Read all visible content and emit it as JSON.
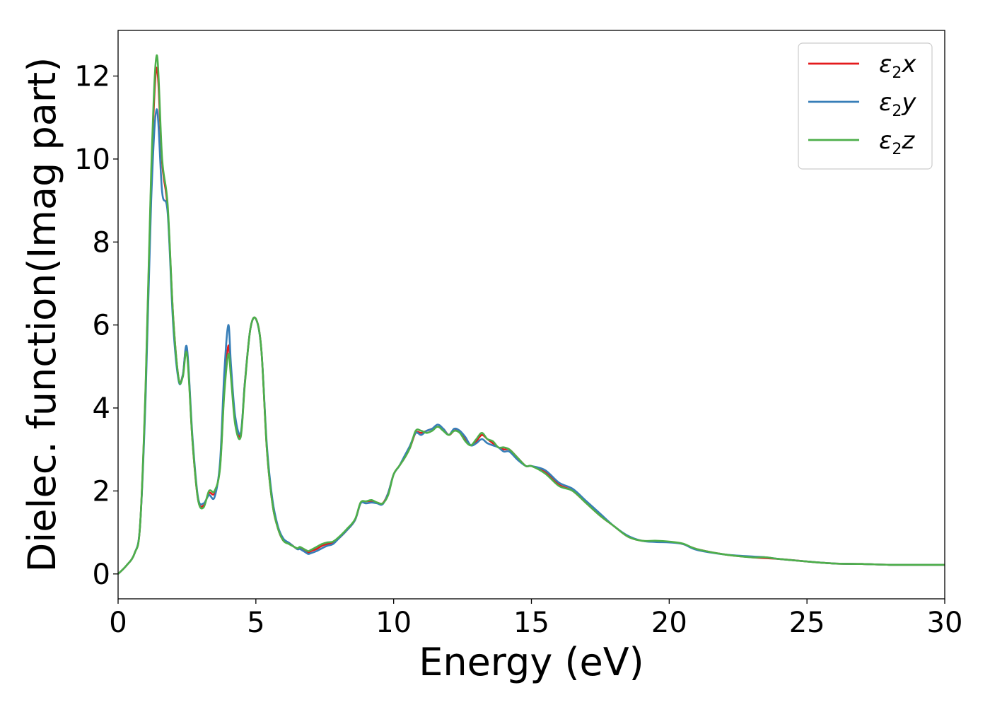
{
  "chart_data": {
    "type": "line",
    "xlabel": "Energy (eV)",
    "ylabel": "Dielec. function(Imag part)",
    "xlim": [
      0,
      30
    ],
    "ylim": [
      -0.6,
      13.1
    ],
    "xticks": [
      0,
      5,
      10,
      15,
      20,
      25,
      30
    ],
    "yticks": [
      0,
      2,
      4,
      6,
      8,
      10,
      12
    ],
    "grid": false,
    "legend_position": "top-right",
    "series": [
      {
        "name": "ε2x",
        "legend_base": "ε",
        "legend_sub": "2",
        "legend_var": "x",
        "color": "#e41a1c",
        "x": [
          0,
          0.3,
          0.6,
          0.8,
          1.0,
          1.2,
          1.4,
          1.6,
          1.8,
          2.0,
          2.2,
          2.35,
          2.5,
          2.7,
          2.9,
          3.1,
          3.3,
          3.5,
          3.7,
          3.85,
          4.0,
          4.1,
          4.25,
          4.45,
          4.6,
          4.8,
          5.0,
          5.2,
          5.4,
          5.6,
          5.8,
          6.0,
          6.2,
          6.5,
          6.6,
          6.8,
          6.9,
          7.0,
          7.2,
          7.4,
          7.6,
          7.8,
          8.0,
          8.3,
          8.6,
          8.8,
          9.0,
          9.2,
          9.4,
          9.6,
          9.8,
          10.0,
          10.2,
          10.4,
          10.6,
          10.8,
          11.0,
          11.2,
          11.4,
          11.6,
          11.8,
          12.0,
          12.2,
          12.4,
          12.6,
          12.8,
          13.0,
          13.2,
          13.4,
          13.6,
          13.8,
          14.0,
          14.2,
          14.5,
          14.8,
          15.0,
          15.5,
          16.0,
          16.5,
          17.0,
          17.5,
          18.0,
          18.5,
          19.0,
          19.5,
          20.0,
          20.5,
          21.0,
          22.0,
          23.0,
          23.5,
          24.0,
          25.0,
          26.0,
          27.0,
          28.0,
          29.0,
          30.0
        ],
        "y": [
          0,
          0.2,
          0.5,
          1.2,
          4.5,
          9.5,
          12.2,
          9.9,
          8.8,
          6.2,
          4.7,
          4.8,
          5.4,
          3.2,
          1.8,
          1.65,
          1.95,
          1.95,
          2.6,
          4.4,
          5.5,
          4.8,
          3.7,
          3.35,
          4.6,
          5.9,
          6.15,
          5.4,
          3.0,
          1.7,
          1.1,
          0.8,
          0.75,
          0.6,
          0.62,
          0.55,
          0.52,
          0.55,
          0.6,
          0.68,
          0.72,
          0.75,
          0.85,
          1.05,
          1.3,
          1.7,
          1.75,
          1.75,
          1.72,
          1.7,
          1.95,
          2.4,
          2.6,
          2.8,
          3.05,
          3.4,
          3.4,
          3.45,
          3.5,
          3.55,
          3.5,
          3.35,
          3.45,
          3.45,
          3.25,
          3.1,
          3.2,
          3.35,
          3.25,
          3.15,
          3.05,
          3.0,
          3.0,
          2.8,
          2.6,
          2.6,
          2.45,
          2.15,
          2.0,
          1.7,
          1.4,
          1.15,
          0.9,
          0.8,
          0.78,
          0.77,
          0.72,
          0.6,
          0.47,
          0.4,
          0.38,
          0.36,
          0.3,
          0.25,
          0.24,
          0.22,
          0.22,
          0.22
        ]
      },
      {
        "name": "ε2y",
        "legend_base": "ε",
        "legend_sub": "2",
        "legend_var": "y",
        "color": "#377eb8",
        "x": [
          0,
          0.3,
          0.6,
          0.8,
          1.0,
          1.2,
          1.4,
          1.6,
          1.8,
          2.0,
          2.2,
          2.35,
          2.5,
          2.7,
          2.9,
          3.1,
          3.3,
          3.5,
          3.7,
          3.85,
          4.0,
          4.1,
          4.25,
          4.45,
          4.6,
          4.8,
          5.0,
          5.2,
          5.4,
          5.6,
          5.8,
          6.0,
          6.2,
          6.5,
          6.6,
          6.8,
          6.9,
          7.0,
          7.2,
          7.4,
          7.6,
          7.8,
          8.0,
          8.3,
          8.6,
          8.8,
          9.0,
          9.2,
          9.4,
          9.6,
          9.8,
          10.0,
          10.2,
          10.4,
          10.6,
          10.8,
          11.0,
          11.2,
          11.4,
          11.6,
          11.8,
          12.0,
          12.2,
          12.4,
          12.6,
          12.8,
          13.0,
          13.2,
          13.4,
          13.6,
          13.8,
          14.0,
          14.2,
          14.5,
          14.8,
          15.0,
          15.5,
          16.0,
          16.5,
          17.0,
          17.5,
          18.0,
          18.5,
          19.0,
          19.5,
          20.0,
          20.5,
          21.0,
          22.0,
          23.0,
          23.5,
          24.0,
          25.0,
          26.0,
          27.0,
          28.0,
          29.0,
          30.0
        ],
        "y": [
          0,
          0.2,
          0.5,
          1.2,
          4.3,
          9.0,
          11.2,
          9.2,
          8.7,
          6.0,
          4.65,
          4.8,
          5.45,
          3.3,
          1.85,
          1.7,
          1.9,
          1.85,
          2.7,
          4.8,
          6.0,
          5.0,
          3.8,
          3.4,
          4.6,
          5.9,
          6.15,
          5.4,
          3.1,
          1.8,
          1.15,
          0.85,
          0.75,
          0.6,
          0.6,
          0.52,
          0.48,
          0.5,
          0.55,
          0.62,
          0.68,
          0.72,
          0.85,
          1.05,
          1.3,
          1.7,
          1.7,
          1.72,
          1.7,
          1.68,
          1.95,
          2.4,
          2.6,
          2.85,
          3.1,
          3.4,
          3.35,
          3.45,
          3.5,
          3.6,
          3.5,
          3.35,
          3.5,
          3.45,
          3.3,
          3.1,
          3.15,
          3.25,
          3.15,
          3.1,
          3.05,
          2.95,
          2.95,
          2.75,
          2.6,
          2.6,
          2.5,
          2.2,
          2.05,
          1.75,
          1.45,
          1.15,
          0.92,
          0.8,
          0.77,
          0.76,
          0.72,
          0.58,
          0.47,
          0.42,
          0.4,
          0.36,
          0.3,
          0.25,
          0.24,
          0.22,
          0.22,
          0.22
        ]
      },
      {
        "name": "ε2z",
        "legend_base": "ε",
        "legend_sub": "2",
        "legend_var": "z",
        "color": "#4daf4a",
        "x": [
          0,
          0.3,
          0.6,
          0.8,
          1.0,
          1.2,
          1.4,
          1.6,
          1.8,
          2.0,
          2.2,
          2.35,
          2.5,
          2.7,
          2.9,
          3.1,
          3.3,
          3.5,
          3.7,
          3.85,
          4.0,
          4.1,
          4.25,
          4.45,
          4.6,
          4.8,
          5.0,
          5.2,
          5.4,
          5.6,
          5.8,
          6.0,
          6.2,
          6.5,
          6.6,
          6.8,
          6.9,
          7.0,
          7.2,
          7.4,
          7.6,
          7.8,
          8.0,
          8.3,
          8.6,
          8.8,
          9.0,
          9.2,
          9.4,
          9.6,
          9.8,
          10.0,
          10.2,
          10.4,
          10.6,
          10.8,
          11.0,
          11.2,
          11.4,
          11.6,
          11.8,
          12.0,
          12.2,
          12.4,
          12.6,
          12.8,
          13.0,
          13.2,
          13.4,
          13.6,
          13.8,
          14.0,
          14.2,
          14.5,
          14.8,
          15.0,
          15.5,
          16.0,
          16.5,
          17.0,
          17.5,
          18.0,
          18.5,
          19.0,
          19.5,
          20.0,
          20.5,
          21.0,
          22.0,
          23.0,
          23.5,
          24.0,
          25.0,
          26.0,
          27.0,
          28.0,
          29.0,
          30.0
        ],
        "y": [
          0,
          0.2,
          0.5,
          1.2,
          4.6,
          9.7,
          12.5,
          10.0,
          8.9,
          6.2,
          4.7,
          4.75,
          5.3,
          3.2,
          1.8,
          1.6,
          2.0,
          2.0,
          2.55,
          4.3,
          5.3,
          4.7,
          3.6,
          3.3,
          4.55,
          5.9,
          6.15,
          5.4,
          3.0,
          1.7,
          1.1,
          0.8,
          0.72,
          0.62,
          0.65,
          0.58,
          0.55,
          0.58,
          0.65,
          0.72,
          0.76,
          0.78,
          0.88,
          1.08,
          1.32,
          1.72,
          1.75,
          1.78,
          1.72,
          1.7,
          1.9,
          2.4,
          2.6,
          2.8,
          3.05,
          3.45,
          3.45,
          3.4,
          3.45,
          3.55,
          3.45,
          3.35,
          3.45,
          3.4,
          3.2,
          3.1,
          3.25,
          3.4,
          3.25,
          3.2,
          3.05,
          3.05,
          3.0,
          2.8,
          2.6,
          2.6,
          2.42,
          2.12,
          2.0,
          1.7,
          1.4,
          1.15,
          0.9,
          0.8,
          0.8,
          0.78,
          0.73,
          0.6,
          0.47,
          0.4,
          0.4,
          0.36,
          0.3,
          0.25,
          0.24,
          0.22,
          0.22,
          0.22
        ]
      }
    ]
  }
}
